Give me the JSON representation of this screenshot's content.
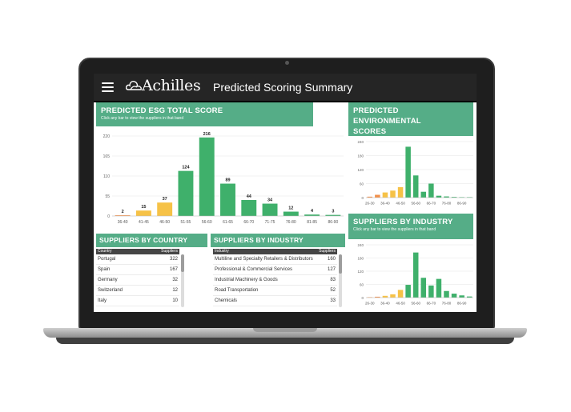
{
  "header": {
    "brand": "Achilles",
    "title": "Predicted Scoring Summary"
  },
  "esg_panel": {
    "title": "PREDICTED ESG TOTAL SCORE",
    "subtitle": "Click any bar to view the suppliers in that band"
  },
  "env_panel": {
    "title_line1": "PREDICTED ENVIRONMENTAL",
    "title_line2": "SCORES",
    "subtitle": "Click any bar to view the suppliers in that band"
  },
  "industry_chart_panel": {
    "title": "SUPPLIERS BY INDUSTRY",
    "subtitle": "Click any bar to view the suppliers in that band"
  },
  "country_table": {
    "title": "SUPPLIERS BY COUNTRY",
    "col1": "Country",
    "col2": "Suppliers",
    "rows": [
      {
        "name": "Portugal",
        "value": "322"
      },
      {
        "name": "Spain",
        "value": "167"
      },
      {
        "name": "Germany",
        "value": "32"
      },
      {
        "name": "Switzerland",
        "value": "12"
      },
      {
        "name": "Italy",
        "value": "10"
      }
    ]
  },
  "industry_table": {
    "title": "SUPPLIERS BY INDUSTRY",
    "col1": "Industry",
    "col2": "Suppliers",
    "rows": [
      {
        "name": "Multiline and Specialty Retailers & Distributors",
        "value": "160"
      },
      {
        "name": "Professional & Commercial Services",
        "value": "127"
      },
      {
        "name": "Industrial Machinery & Goods",
        "value": "83"
      },
      {
        "name": "Road Transportation",
        "value": "52"
      },
      {
        "name": "Chemicals",
        "value": "33"
      }
    ]
  },
  "colors": {
    "green": "#55ad87",
    "bar_green": "#3fb06b",
    "orange": "#f2904b",
    "yellow": "#f6c247",
    "dark": "#252525"
  },
  "chart_data": [
    {
      "type": "bar",
      "categories": [
        "36-40",
        "41-45",
        "46-50",
        "51-55",
        "56-60",
        "61-65",
        "66-70",
        "71-75",
        "76-80",
        "81-85",
        "86-90"
      ],
      "values": [
        2,
        15,
        37,
        124,
        216,
        89,
        44,
        34,
        12,
        4,
        3
      ],
      "bar_colors": [
        "#f2904b",
        "#f6c247",
        "#f6c247",
        "#3fb06b",
        "#3fb06b",
        "#3fb06b",
        "#3fb06b",
        "#3fb06b",
        "#3fb06b",
        "#3fb06b",
        "#3fb06b"
      ],
      "yticks": [
        0,
        55,
        110,
        165,
        220
      ],
      "ylim": [
        0,
        220
      ],
      "data_labels": true,
      "grid": true
    },
    {
      "type": "bar",
      "categories": [
        "26-30",
        "31-35",
        "36-40",
        "41-45",
        "46-50",
        "51-55",
        "56-60",
        "61-65",
        "66-70",
        "71-75",
        "76-80",
        "81-85",
        "86-90",
        "91-95"
      ],
      "values": [
        4,
        12,
        22,
        30,
        45,
        218,
        95,
        25,
        60,
        8,
        5,
        3,
        2,
        2
      ],
      "bar_colors": [
        "#f2904b",
        "#f2904b",
        "#f6c247",
        "#f6c247",
        "#f6c247",
        "#3fb06b",
        "#3fb06b",
        "#3fb06b",
        "#3fb06b",
        "#3fb06b",
        "#3fb06b",
        "#3fb06b",
        "#3fb06b",
        "#3fb06b"
      ],
      "tick_labels": [
        "26-30",
        "36-40",
        "46-50",
        "56-60",
        "66-70",
        "76-80",
        "86-90"
      ],
      "yticks": [
        0,
        60,
        120,
        180,
        240
      ],
      "ylim": [
        0,
        240
      ],
      "grid": true
    },
    {
      "type": "bar",
      "categories": [
        "26-30",
        "31-35",
        "36-40",
        "41-45",
        "46-50",
        "51-55",
        "56-60",
        "61-65",
        "66-70",
        "71-75",
        "76-80",
        "81-85",
        "86-90",
        "91-95"
      ],
      "values": [
        2,
        4,
        8,
        15,
        35,
        58,
        205,
        90,
        55,
        85,
        30,
        18,
        10,
        5
      ],
      "bar_colors": [
        "#f2904b",
        "#f2904b",
        "#f6c247",
        "#f6c247",
        "#f6c247",
        "#3fb06b",
        "#3fb06b",
        "#3fb06b",
        "#3fb06b",
        "#3fb06b",
        "#3fb06b",
        "#3fb06b",
        "#3fb06b",
        "#3fb06b"
      ],
      "tick_labels": [
        "26-30",
        "36-40",
        "46-50",
        "56-60",
        "66-70",
        "76-80",
        "86-90"
      ],
      "yticks": [
        0,
        60,
        120,
        180,
        240
      ],
      "ylim": [
        0,
        240
      ],
      "grid": true
    }
  ]
}
